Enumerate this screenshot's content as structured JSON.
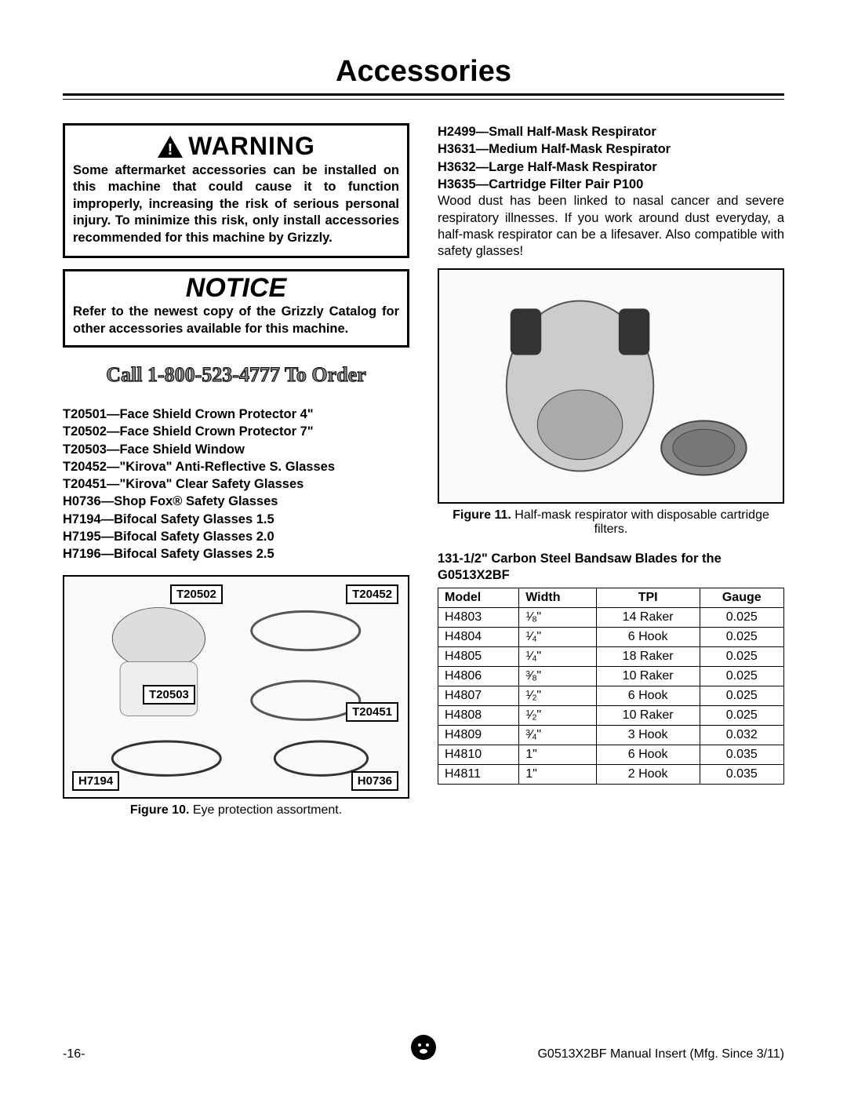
{
  "page_title": "Accessories",
  "warning": {
    "header": "WARNING",
    "body": "Some aftermarket accessories can be installed on this machine that could cause it to function improperly, increasing the risk of serious personal injury. To minimize this risk, only install accessories recommended for this machine by Grizzly."
  },
  "notice": {
    "header": "NOTICE",
    "body": "Refer to the newest copy of the Grizzly Catalog for other accessories available for this machine."
  },
  "call_to_order": "Call 1-800-523-4777 To Order",
  "eye_protection_list": [
    "T20501—Face Shield Crown Protector 4\"",
    "T20502—Face Shield Crown Protector 7\"",
    "T20503—Face Shield Window",
    "T20452—\"Kirova\" Anti-Reflective S. Glasses",
    "T20451—\"Kirova\" Clear Safety Glasses",
    "H0736—Shop Fox® Safety Glasses",
    "H7194—Bifocal Safety Glasses 1.5",
    "H7195—Bifocal Safety Glasses 2.0",
    "H7196—Bifocal Safety Glasses 2.5"
  ],
  "fig10": {
    "callouts": {
      "t20502": "T20502",
      "t20452": "T20452",
      "t20503": "T20503",
      "t20451": "T20451",
      "h7194": "H7194",
      "h0736": "H0736"
    },
    "caption_label": "Figure 10.",
    "caption_text": " Eye protection assortment."
  },
  "respirator_list": [
    "H2499—Small Half-Mask Respirator",
    "H3631—Medium Half-Mask Respirator",
    "H3632—Large Half-Mask Respirator",
    "H3635—Cartridge Filter Pair P100"
  ],
  "respirator_body": "Wood dust has been linked to nasal cancer and severe respiratory illnesses. If you work around dust everyday, a half-mask respirator can be a lifesaver. Also compatible with safety glasses!",
  "fig11": {
    "caption_label": "Figure 11.",
    "caption_text": " Half-mask respirator with disposable cartridge filters."
  },
  "blades": {
    "title": "131-1/2\" Carbon Steel Bandsaw Blades for the G0513X2BF",
    "headers": [
      "Model",
      "Width",
      "TPI",
      "Gauge"
    ],
    "rows": [
      [
        "H4803",
        "1/8\"",
        "14 Raker",
        "0.025"
      ],
      [
        "H4804",
        "1/4\"",
        "6 Hook",
        "0.025"
      ],
      [
        "H4805",
        "1/4\"",
        "18 Raker",
        "0.025"
      ],
      [
        "H4806",
        "3/8\"",
        "10 Raker",
        "0.025"
      ],
      [
        "H4807",
        "1/2\"",
        "6 Hook",
        "0.025"
      ],
      [
        "H4808",
        "1/2\"",
        "10 Raker",
        "0.025"
      ],
      [
        "H4809",
        "3/4\"",
        "3 Hook",
        "0.032"
      ],
      [
        "H4810",
        "1\"",
        "6 Hook",
        "0.035"
      ],
      [
        "H4811",
        "1\"",
        "2 Hook",
        "0.035"
      ]
    ]
  },
  "footer": {
    "page_num": "-16-",
    "doc_id": "G0513X2BF Manual Insert (Mfg. Since 3/11)"
  },
  "colors": {
    "page_bg": "#ffffff",
    "text": "#000000",
    "outline_stroke": "#000000",
    "outline_fill": "#888888"
  }
}
